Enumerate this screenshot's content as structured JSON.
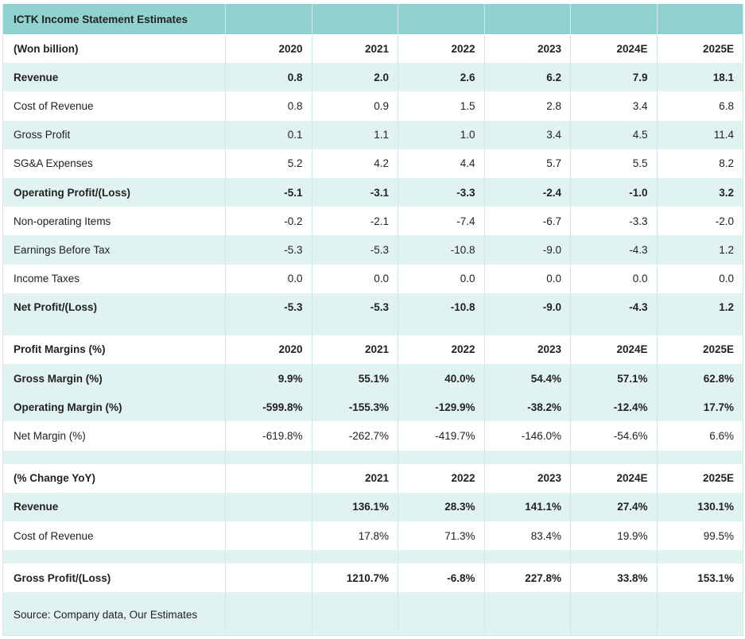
{
  "table": {
    "title": "ICTK Income Statement Estimates",
    "header": [
      "(Won billion)",
      "2020",
      "2021",
      "2022",
      "2023",
      "2024E",
      "2025E"
    ],
    "income_rows": [
      {
        "label": "Revenue",
        "bold": true,
        "values": [
          "0.8",
          "2.0",
          "2.6",
          "6.2",
          "7.9",
          "18.1"
        ]
      },
      {
        "label": "Cost of Revenue",
        "bold": false,
        "values": [
          "0.8",
          "0.9",
          "1.5",
          "2.8",
          "3.4",
          "6.8"
        ]
      },
      {
        "label": "Gross Profit",
        "bold": false,
        "values": [
          "0.1",
          "1.1",
          "1.0",
          "3.4",
          "4.5",
          "11.4"
        ]
      },
      {
        "label": "SG&A Expenses",
        "bold": false,
        "values": [
          "5.2",
          "4.2",
          "4.4",
          "5.7",
          "5.5",
          "8.2"
        ]
      },
      {
        "label": "Operating Profit/(Loss)",
        "bold": true,
        "values": [
          "-5.1",
          "-3.1",
          "-3.3",
          "-2.4",
          "-1.0",
          "3.2"
        ]
      },
      {
        "label": "Non-operating Items",
        "bold": false,
        "values": [
          "-0.2",
          "-2.1",
          "-7.4",
          "-6.7",
          "-3.3",
          "-2.0"
        ]
      },
      {
        "label": "Earnings Before Tax",
        "bold": false,
        "values": [
          "-5.3",
          "-5.3",
          "-10.8",
          "-9.0",
          "-4.3",
          "1.2"
        ]
      },
      {
        "label": "Income Taxes",
        "bold": false,
        "values": [
          "0.0",
          "0.0",
          "0.0",
          "0.0",
          "0.0",
          "0.0"
        ]
      },
      {
        "label": "Net Profit/(Loss)",
        "bold": true,
        "values": [
          "-5.3",
          "-5.3",
          "-10.8",
          "-9.0",
          "-4.3",
          "1.2"
        ]
      }
    ],
    "margin_header": [
      "Profit Margins (%)",
      "2020",
      "2021",
      "2022",
      "2023",
      "2024E",
      "2025E"
    ],
    "margin_rows": [
      {
        "label": "Gross Margin (%)",
        "bold": true,
        "values": [
          "9.9%",
          "55.1%",
          "40.0%",
          "54.4%",
          "57.1%",
          "62.8%"
        ]
      },
      {
        "label": "Operating Margin (%)",
        "bold": true,
        "values": [
          "-599.8%",
          "-155.3%",
          "-129.9%",
          "-38.2%",
          "-12.4%",
          "17.7%"
        ]
      },
      {
        "label": "Net Margin (%)",
        "bold": false,
        "values": [
          "-619.8%",
          "-262.7%",
          "-419.7%",
          "-146.0%",
          "-54.6%",
          "6.6%"
        ]
      }
    ],
    "yoy_header": [
      "(% Change YoY)",
      "",
      "2021",
      "2022",
      "2023",
      "2024E",
      "2025E"
    ],
    "yoy_rows": [
      {
        "label": "Revenue",
        "bold": true,
        "values": [
          "",
          "136.1%",
          "28.3%",
          "141.1%",
          "27.4%",
          "130.1%"
        ]
      },
      {
        "label": "Cost of Revenue",
        "bold": false,
        "values": [
          "",
          "17.8%",
          "71.3%",
          "83.4%",
          "19.9%",
          "99.5%"
        ]
      }
    ],
    "gp_row": {
      "label": "Gross Profit/(Loss)",
      "bold": true,
      "values": [
        "",
        "1210.7%",
        "-6.8%",
        "227.8%",
        "33.8%",
        "153.1%"
      ]
    },
    "source": "Source: Company data, Our Estimates"
  },
  "chart_data": {
    "type": "table",
    "title": "ICTK Income Statement Estimates",
    "columns": [
      "2020",
      "2021",
      "2022",
      "2023",
      "2024E",
      "2025E"
    ],
    "sections": [
      {
        "header": "(Won billion)",
        "rows": [
          {
            "name": "Revenue",
            "values": [
              0.8,
              2.0,
              2.6,
              6.2,
              7.9,
              18.1
            ]
          },
          {
            "name": "Cost of Revenue",
            "values": [
              0.8,
              0.9,
              1.5,
              2.8,
              3.4,
              6.8
            ]
          },
          {
            "name": "Gross Profit",
            "values": [
              0.1,
              1.1,
              1.0,
              3.4,
              4.5,
              11.4
            ]
          },
          {
            "name": "SG&A Expenses",
            "values": [
              5.2,
              4.2,
              4.4,
              5.7,
              5.5,
              8.2
            ]
          },
          {
            "name": "Operating Profit/(Loss)",
            "values": [
              -5.1,
              -3.1,
              -3.3,
              -2.4,
              -1.0,
              3.2
            ]
          },
          {
            "name": "Non-operating Items",
            "values": [
              -0.2,
              -2.1,
              -7.4,
              -6.7,
              -3.3,
              -2.0
            ]
          },
          {
            "name": "Earnings Before Tax",
            "values": [
              -5.3,
              -5.3,
              -10.8,
              -9.0,
              -4.3,
              1.2
            ]
          },
          {
            "name": "Income Taxes",
            "values": [
              0.0,
              0.0,
              0.0,
              0.0,
              0.0,
              0.0
            ]
          },
          {
            "name": "Net Profit/(Loss)",
            "values": [
              -5.3,
              -5.3,
              -10.8,
              -9.0,
              -4.3,
              1.2
            ]
          }
        ]
      },
      {
        "header": "Profit Margins (%)",
        "rows": [
          {
            "name": "Gross Margin (%)",
            "values": [
              9.9,
              55.1,
              40.0,
              54.4,
              57.1,
              62.8
            ]
          },
          {
            "name": "Operating Margin (%)",
            "values": [
              -599.8,
              -155.3,
              -129.9,
              -38.2,
              -12.4,
              17.7
            ]
          },
          {
            "name": "Net Margin (%)",
            "values": [
              -619.8,
              -262.7,
              -419.7,
              -146.0,
              -54.6,
              6.6
            ]
          }
        ]
      },
      {
        "header": "(% Change YoY)",
        "rows": [
          {
            "name": "Revenue",
            "values": [
              null,
              136.1,
              28.3,
              141.1,
              27.4,
              130.1
            ]
          },
          {
            "name": "Cost of Revenue",
            "values": [
              null,
              17.8,
              71.3,
              83.4,
              19.9,
              99.5
            ]
          },
          {
            "name": "Gross Profit/(Loss)",
            "values": [
              null,
              1210.7,
              -6.8,
              227.8,
              33.8,
              153.1
            ]
          }
        ]
      }
    ],
    "source": "Source: Company data, Our Estimates"
  }
}
